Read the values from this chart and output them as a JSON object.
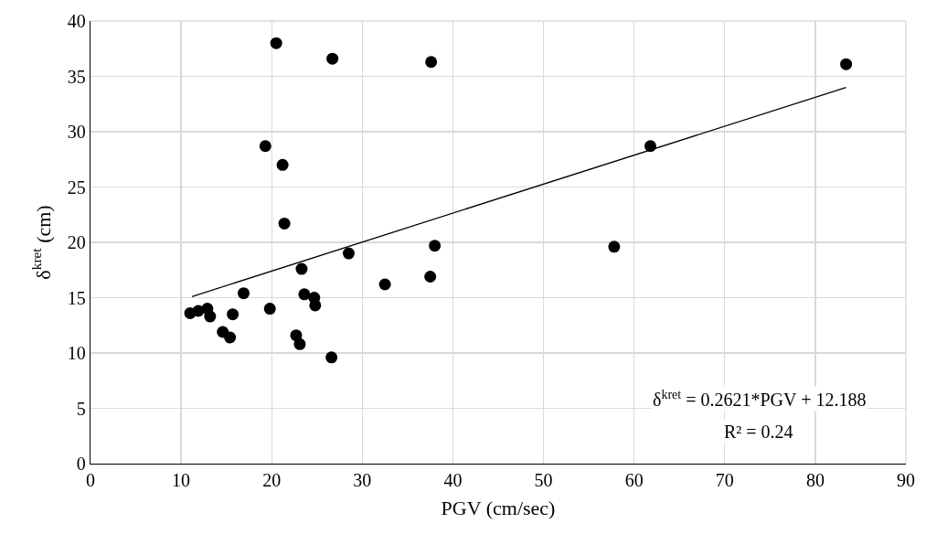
{
  "chart_data": {
    "type": "scatter",
    "xlabel": "PGV (cm/sec)",
    "ylabel": "δ$^{kret}$ (cm)",
    "xlim": [
      0,
      90
    ],
    "xticks": [
      0,
      10,
      20,
      30,
      40,
      50,
      60,
      70,
      80,
      90
    ],
    "ylim": [
      0,
      40
    ],
    "yticks": [
      0,
      5,
      10,
      15,
      20,
      25,
      30,
      35,
      40
    ],
    "grid": true,
    "marker": "circle",
    "series": [
      {
        "color": "#000000",
        "x": [
          11.0,
          11.9,
          12.9,
          13.2,
          14.6,
          15.4,
          15.7,
          16.9,
          19.3,
          19.8,
          20.5,
          21.2,
          21.4,
          22.7,
          23.1,
          23.3,
          23.6,
          24.7,
          24.8,
          26.6,
          26.7,
          28.5,
          32.5,
          37.5,
          37.6,
          38.0,
          57.8,
          61.8,
          83.4
        ],
        "values": [
          13.6,
          13.8,
          14.0,
          13.3,
          11.9,
          11.4,
          13.5,
          15.4,
          28.7,
          14.0,
          38.0,
          27.0,
          21.7,
          11.6,
          10.8,
          17.6,
          15.3,
          15.0,
          14.3,
          9.6,
          36.6,
          19.0,
          16.2,
          16.9,
          36.3,
          19.7,
          19.6,
          28.7,
          36.1
        ]
      },
      {
        "type": "line",
        "color": "#000000",
        "marker": "none",
        "line_style": "solid",
        "x": [
          11.2,
          83.4
        ],
        "values": [
          15.1,
          34.0
        ]
      }
    ],
    "annotations": [
      "δ$^{kret}$ = 0.2621*PGV + 12.188",
      "R² = 0.24"
    ]
  }
}
